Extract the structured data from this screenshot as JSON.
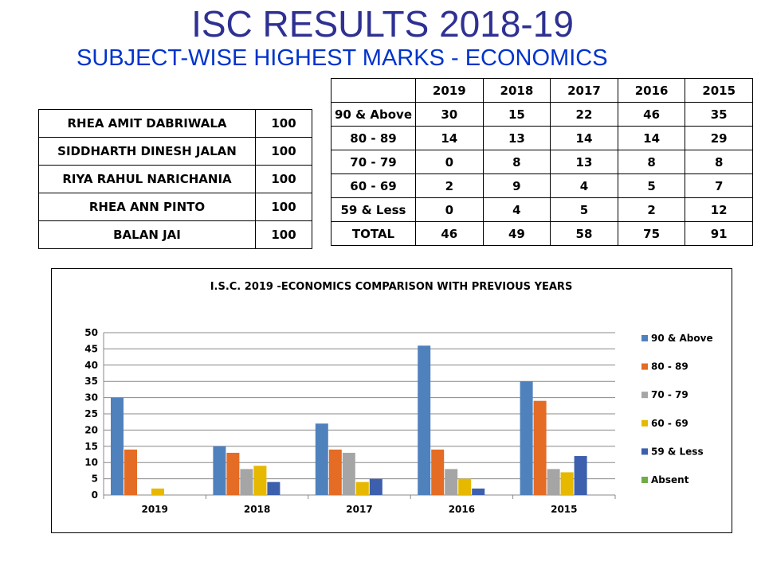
{
  "header": {
    "title": "ISC RESULTS 2018-19",
    "subtitle": "SUBJECT-WISE HIGHEST MARKS - ECONOMICS"
  },
  "toppers": [
    {
      "name": "RHEA AMIT DABRIWALA",
      "marks": "100"
    },
    {
      "name": "SIDDHARTH DINESH JALAN",
      "marks": "100"
    },
    {
      "name": "RIYA RAHUL NARICHANIA",
      "marks": "100"
    },
    {
      "name": "RHEA ANN PINTO",
      "marks": "100"
    },
    {
      "name": "BALAN JAI",
      "marks": "100"
    }
  ],
  "distribution_table": {
    "header": [
      "",
      "2019",
      "2018",
      "2017",
      "2016",
      "2015"
    ],
    "rows": [
      [
        "90 & Above",
        "30",
        "15",
        "22",
        "46",
        "35"
      ],
      [
        "80 - 89",
        "14",
        "13",
        "14",
        "14",
        "29"
      ],
      [
        "70 - 79",
        "0",
        "8",
        "13",
        "8",
        "8"
      ],
      [
        "60 - 69",
        "2",
        "9",
        "4",
        "5",
        "7"
      ],
      [
        "59 & Less",
        "0",
        "4",
        "5",
        "2",
        "12"
      ],
      [
        "TOTAL",
        "46",
        "49",
        "58",
        "75",
        "91"
      ]
    ]
  },
  "chart_data": {
    "type": "bar",
    "title": "I.S.C. 2019 -ECONOMICS COMPARISON WITH PREVIOUS YEARS",
    "xlabel": "",
    "ylabel": "",
    "categories": [
      "2019",
      "2018",
      "2017",
      "2016",
      "2015"
    ],
    "ylim": [
      0,
      50
    ],
    "yticks": [
      0,
      5,
      10,
      15,
      20,
      25,
      30,
      35,
      40,
      45,
      50
    ],
    "grid": true,
    "legend_position": "right",
    "series": [
      {
        "name": "90 & Above",
        "color": "#4F81BD",
        "values": [
          30,
          15,
          22,
          46,
          35
        ]
      },
      {
        "name": "80 - 89",
        "color": "#E46C24",
        "values": [
          14,
          13,
          14,
          14,
          29
        ]
      },
      {
        "name": "70 - 79",
        "color": "#A5A5A5",
        "values": [
          0,
          8,
          13,
          8,
          8
        ]
      },
      {
        "name": "60 - 69",
        "color": "#E6B800",
        "values": [
          2,
          9,
          4,
          5,
          7
        ]
      },
      {
        "name": "59 & Less",
        "color": "#3C5FAE",
        "values": [
          0,
          4,
          5,
          2,
          12
        ]
      },
      {
        "name": "Absent",
        "color": "#70AD47",
        "values": [
          0,
          0,
          0,
          0,
          0
        ]
      }
    ]
  }
}
